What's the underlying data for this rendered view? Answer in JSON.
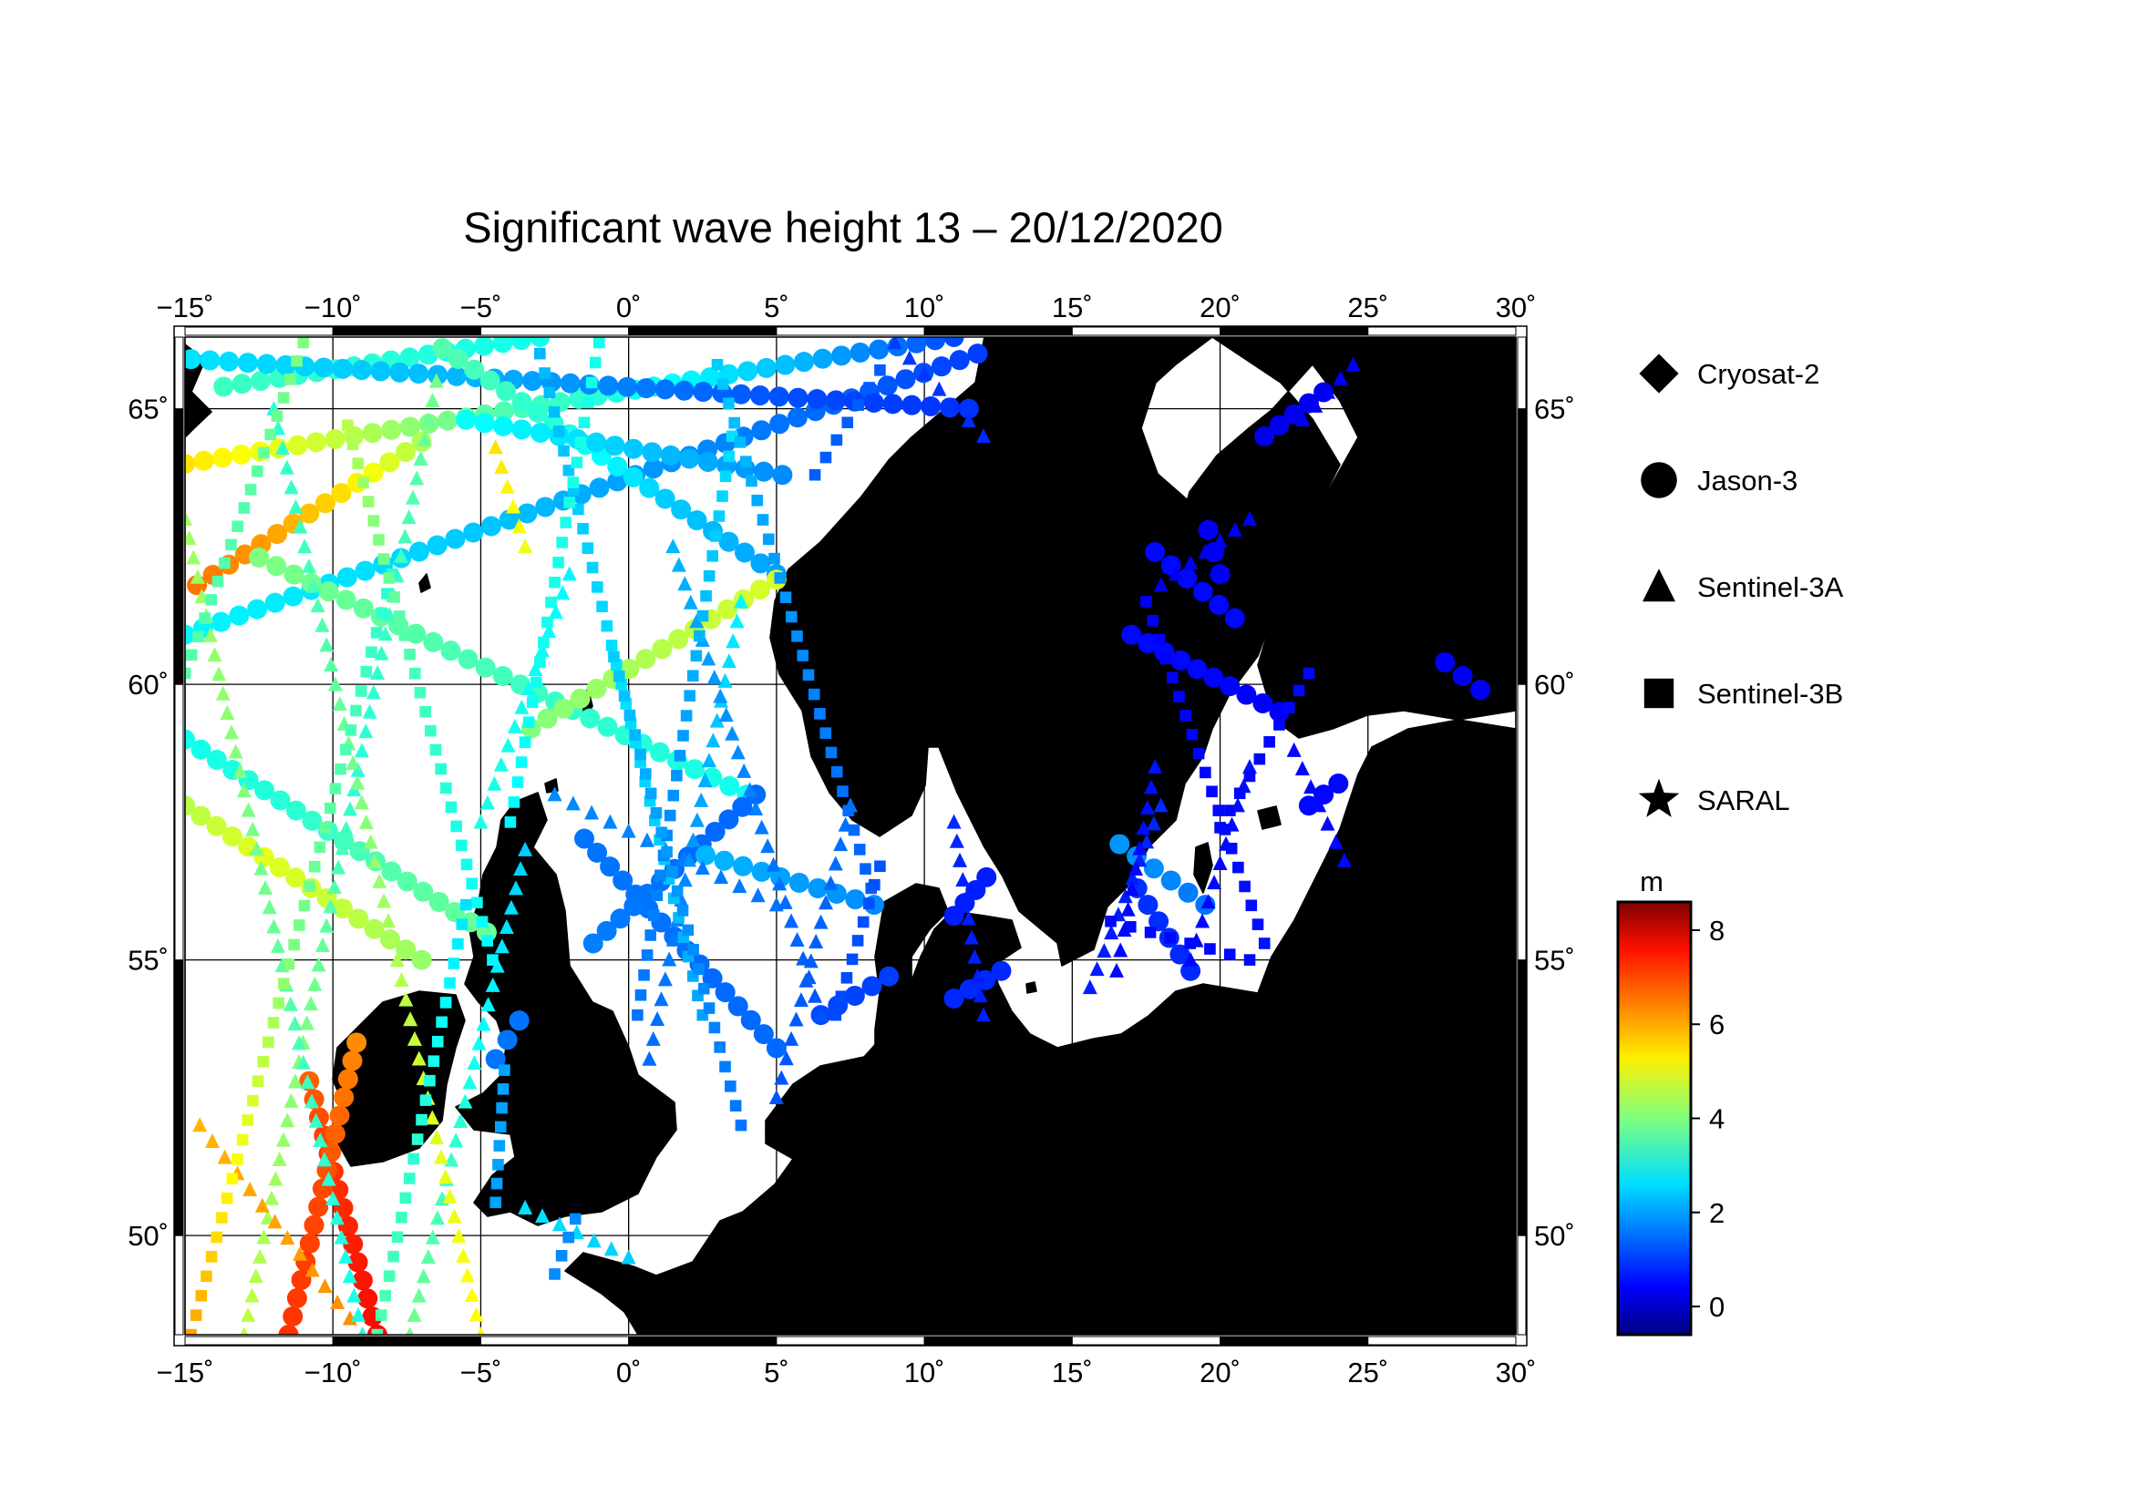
{
  "title": "Significant wave height 13 – 20/12/2020",
  "map": {
    "lon_range": [
      -15,
      30
    ],
    "lat_range": [
      48.2,
      66.3
    ],
    "lon_ticks": [
      -15,
      -10,
      -5,
      0,
      5,
      10,
      15,
      20,
      25,
      30
    ],
    "lat_ticks": [
      50,
      55,
      60,
      65
    ],
    "lon_tick_labels": [
      "−15˚",
      "−10˚",
      "−5˚",
      "0˚",
      "5˚",
      "10˚",
      "15˚",
      "20˚",
      "25˚",
      "30˚"
    ],
    "lat_tick_labels": [
      "50˚",
      "55˚",
      "60˚",
      "65˚"
    ],
    "land_color": "#bebebe",
    "sea_color": "#ffffff",
    "grid": true
  },
  "legend": {
    "items": [
      {
        "label": "Cryosat-2",
        "marker": "diamond"
      },
      {
        "label": "Jason-3",
        "marker": "circle"
      },
      {
        "label": "Sentinel-3A",
        "marker": "triangle"
      },
      {
        "label": "Sentinel-3B",
        "marker": "square"
      },
      {
        "label": "SARAL",
        "marker": "star"
      }
    ]
  },
  "colorbar": {
    "unit": "m",
    "min": -0.6,
    "max": 8.6,
    "ticks": [
      0,
      2,
      4,
      6,
      8
    ],
    "tick_labels": [
      "0",
      "2",
      "4",
      "6",
      "8"
    ]
  },
  "chart_data": {
    "type": "scatter",
    "title": "Significant wave height 13 – 20/12/2020",
    "x_label": "",
    "y_label": "",
    "value_unit": "m",
    "series": [
      {
        "name": "Jason-3",
        "marker": "circle",
        "tracks": [
          {
            "from": [
              -15,
              64.0
            ],
            "to": [
              11,
              66.3
            ],
            "hs": [
              5.4,
              4.6,
              3.6,
              3.0,
              2.2,
              1.2
            ]
          },
          {
            "from": [
              -14.6,
              61.8
            ],
            "to": [
              -7,
              64.4
            ],
            "hs": [
              6.4,
              6.0,
              5.4,
              4.4
            ]
          },
          {
            "from": [
              -15,
              60.9
            ],
            "to": [
              11.8,
              66.0
            ],
            "hs": [
              2.8,
              2.6,
              2.3,
              1.9,
              1.5,
              1.1
            ]
          },
          {
            "from": [
              -13.7,
              65.4
            ],
            "to": [
              -3,
              66.3
            ],
            "hs": [
              3.4,
              3.2,
              3.0
            ]
          },
          {
            "from": [
              -14.8,
              65.9
            ],
            "to": [
              11.5,
              65.0
            ],
            "hs": [
              2.6,
              2.4,
              2.1,
              1.6,
              1.2,
              1.0
            ]
          },
          {
            "from": [
              -6.3,
              66.1
            ],
            "to": [
              5.0,
              62.0
            ],
            "hs": [
              3.6,
              3.2,
              2.4,
              2.0
            ]
          },
          {
            "from": [
              -5.5,
              64.8
            ],
            "to": [
              5.2,
              63.8
            ],
            "hs": [
              2.9,
              2.6,
              2.2,
              1.8
            ]
          },
          {
            "from": [
              -15,
              59.0
            ],
            "to": [
              -4.8,
              55.5
            ],
            "hs": [
              3.0,
              3.2,
              3.6,
              3.8
            ]
          },
          {
            "from": [
              -15,
              57.8
            ],
            "to": [
              -7.0,
              55.0
            ],
            "hs": [
              4.5,
              4.9,
              4.6,
              4.2
            ]
          },
          {
            "from": [
              -12.5,
              62.3
            ],
            "to": [
              4.0,
              58.0
            ],
            "hs": [
              4.0,
              3.6,
              3.3,
              3.0
            ]
          },
          {
            "from": [
              -3.3,
              59.2
            ],
            "to": [
              5.0,
              61.9
            ],
            "hs": [
              4.0,
              4.3,
              4.6,
              4.8
            ]
          },
          {
            "from": [
              -1.5,
              57.2
            ],
            "to": [
              5.0,
              53.4
            ],
            "hs": [
              1.6,
              1.6,
              1.5,
              1.5
            ]
          },
          {
            "from": [
              -1.2,
              55.3
            ],
            "to": [
              4.3,
              58.0
            ],
            "hs": [
              1.7,
              1.6,
              1.5,
              1.5
            ]
          },
          {
            "from": [
              -10.8,
              52.8
            ],
            "to": [
              -8.5,
              48.2
            ],
            "hs": [
              6.6,
              7.0,
              7.2,
              7.4
            ]
          },
          {
            "from": [
              -11.5,
              48.2
            ],
            "to": [
              -9.2,
              53.5
            ],
            "hs": [
              7.0,
              6.8,
              6.2
            ]
          },
          {
            "from": [
              2.6,
              56.9
            ],
            "to": [
              8.3,
              56.0
            ],
            "hs": [
              2.2,
              2.0,
              1.8
            ]
          },
          {
            "from": [
              6.5,
              54.0
            ],
            "to": [
              8.8,
              54.7
            ],
            "hs": [
              1.2,
              1.1
            ]
          },
          {
            "from": [
              16.6,
              57.1
            ],
            "to": [
              19.5,
              56.0
            ],
            "hs": [
              1.9,
              1.8,
              1.6
            ]
          },
          {
            "from": [
              17.8,
              62.4
            ],
            "to": [
              20.5,
              61.2
            ],
            "hs": [
              0.6,
              0.6,
              0.6
            ]
          },
          {
            "from": [
              19.6,
              62.8
            ],
            "to": [
              20.0,
              62.0
            ],
            "hs": [
              0.5,
              0.5
            ]
          },
          {
            "from": [
              17.0,
              60.9
            ],
            "to": [
              22.0,
              59.5
            ],
            "hs": [
              0.6,
              0.6,
              0.5
            ]
          },
          {
            "from": [
              21.5,
              64.5
            ],
            "to": [
              23.5,
              65.3
            ],
            "hs": [
              0.4,
              0.4
            ]
          },
          {
            "from": [
              11.0,
              55.8
            ],
            "to": [
              12.1,
              56.5
            ],
            "hs": [
              0.8,
              0.8
            ]
          },
          {
            "from": [
              17.2,
              56.3
            ],
            "to": [
              19.0,
              54.8
            ],
            "hs": [
              1.0,
              0.9
            ]
          },
          {
            "from": [
              23.0,
              57.8
            ],
            "to": [
              24.0,
              58.2
            ],
            "hs": [
              0.6,
              0.6
            ]
          },
          {
            "from": [
              27.6,
              60.4
            ],
            "to": [
              28.8,
              59.9
            ],
            "hs": [
              0.5,
              0.5
            ]
          },
          {
            "from": [
              -4.5,
              53.2
            ],
            "to": [
              -3.7,
              53.9
            ],
            "hs": [
              1.6,
              1.6
            ]
          },
          {
            "from": [
              11.0,
              54.3
            ],
            "to": [
              12.6,
              54.8
            ],
            "hs": [
              0.9,
              0.9
            ]
          }
        ]
      },
      {
        "name": "Sentinel-3A",
        "marker": "triangle",
        "tracks": [
          {
            "from": [
              -13.0,
              48.2
            ],
            "to": [
              -6.5,
              65.5
            ],
            "hs": [
              4.6,
              4.2,
              3.8,
              3.2,
              3.4,
              3.9
            ]
          },
          {
            "from": [
              -14.5,
              52.0
            ],
            "to": [
              -9.0,
              48.2
            ],
            "hs": [
              5.8,
              6.0,
              6.2
            ]
          },
          {
            "from": [
              -9.0,
              48.2
            ],
            "to": [
              -15.0,
              63.0
            ],
            "hs": [
              3.0,
              3.3,
              3.8,
              4.1,
              4.3
            ]
          },
          {
            "from": [
              -7.4,
              48.2
            ],
            "to": [
              -3.5,
              57.0
            ],
            "hs": [
              3.9,
              3.4,
              2.8,
              2.4
            ]
          },
          {
            "from": [
              -5.0,
              48.2
            ],
            "to": [
              -12.0,
              65.0
            ],
            "hs": [
              5.2,
              4.8,
              4.2,
              3.6,
              3.2
            ]
          },
          {
            "from": [
              -5.0,
              57.5
            ],
            "to": [
              -2.0,
              62.0
            ],
            "hs": [
              3.1,
              3.0,
              2.8
            ]
          },
          {
            "from": [
              -2.5,
              58.0
            ],
            "to": [
              5.0,
              56.0
            ],
            "hs": [
              1.8,
              1.7,
              1.6
            ]
          },
          {
            "from": [
              0.7,
              53.2
            ],
            "to": [
              3.8,
              61.5
            ],
            "hs": [
              1.5,
              1.7,
              2.2,
              2.8
            ]
          },
          {
            "from": [
              1.5,
              62.5
            ],
            "to": [
              6.5,
              54.0
            ],
            "hs": [
              2.2,
              1.9,
              1.6,
              1.3
            ]
          },
          {
            "from": [
              5.0,
              52.5
            ],
            "to": [
              7.5,
              57.8
            ],
            "hs": [
              1.3,
              1.4,
              1.6
            ]
          },
          {
            "from": [
              -3.5,
              62.5
            ],
            "to": [
              -4.5,
              64.3
            ],
            "hs": [
              5.0,
              5.4
            ]
          },
          {
            "from": [
              11.0,
              57.5
            ],
            "to": [
              12.0,
              54.0
            ],
            "hs": [
              0.9,
              0.8,
              0.8
            ]
          },
          {
            "from": [
              15.6,
              54.5
            ],
            "to": [
              18.0,
              57.8
            ],
            "hs": [
              0.8,
              0.8,
              0.9
            ]
          },
          {
            "from": [
              16.5,
              54.8
            ],
            "to": [
              17.8,
              58.5
            ],
            "hs": [
              0.6,
              0.6,
              0.7
            ]
          },
          {
            "from": [
              19.0,
              55.0
            ],
            "to": [
              21.0,
              58.5
            ],
            "hs": [
              0.6,
              0.6,
              0.7
            ]
          },
          {
            "from": [
              18.0,
              61.8
            ],
            "to": [
              21.0,
              63.0
            ],
            "hs": [
              0.4,
              0.5
            ]
          },
          {
            "from": [
              22.5,
              58.8
            ],
            "to": [
              24.2,
              56.8
            ],
            "hs": [
              0.6,
              0.6
            ]
          },
          {
            "from": [
              22.8,
              64.8
            ],
            "to": [
              24.5,
              65.8
            ],
            "hs": [
              0.5,
              0.5
            ]
          },
          {
            "from": [
              12.0,
              64.5
            ],
            "to": [
              9.0,
              66.2
            ],
            "hs": [
              0.9,
              1.1
            ]
          },
          {
            "from": [
              -3.5,
              50.5
            ],
            "to": [
              0.0,
              49.6
            ],
            "hs": [
              2.6,
              2.4
            ]
          }
        ]
      },
      {
        "name": "Sentinel-3B",
        "marker": "square",
        "tracks": [
          {
            "from": [
              -14.8,
              48.2
            ],
            "to": [
              -8.0,
              62.0
            ],
            "hs": [
              6.0,
              5.0,
              4.0,
              3.6,
              3.2
            ]
          },
          {
            "from": [
              -15.0,
              60.2
            ],
            "to": [
              -11.0,
              66.2
            ],
            "hs": [
              3.6,
              3.6,
              4.0
            ]
          },
          {
            "from": [
              -9.5,
              64.7
            ],
            "to": [
              -4.6,
              55.0
            ],
            "hs": [
              4.5,
              3.7,
              3.2,
              2.8
            ]
          },
          {
            "from": [
              -8.5,
              48.2
            ],
            "to": [
              -5.5,
              56.0
            ],
            "hs": [
              3.6,
              3.2,
              2.6
            ]
          },
          {
            "from": [
              -3.0,
              66.0
            ],
            "to": [
              2.5,
              54.0
            ],
            "hs": [
              2.2,
              2.4,
              2.6,
              2.4,
              2.0
            ]
          },
          {
            "from": [
              -4.0,
              57.5
            ],
            "to": [
              -1.0,
              66.2
            ],
            "hs": [
              2.8,
              3.0,
              3.1,
              3.0
            ]
          },
          {
            "from": [
              0.3,
              54.0
            ],
            "to": [
              3.5,
              64.5
            ],
            "hs": [
              1.6,
              1.8,
              2.2,
              2.6
            ]
          },
          {
            "from": [
              -0.5,
              60.5
            ],
            "to": [
              3.8,
              52.0
            ],
            "hs": [
              2.4,
              2.0,
              1.8,
              1.6
            ]
          },
          {
            "from": [
              3.0,
              65.8
            ],
            "to": [
              8.2,
              56.3
            ],
            "hs": [
              2.4,
              2.0,
              1.7,
              1.4
            ]
          },
          {
            "from": [
              8.5,
              56.7
            ],
            "to": [
              7.0,
              54.0
            ],
            "hs": [
              1.3,
              1.2
            ]
          },
          {
            "from": [
              6.3,
              63.8
            ],
            "to": [
              8.5,
              65.7
            ],
            "hs": [
              1.4,
              1.4
            ]
          },
          {
            "from": [
              16.3,
              55.7
            ],
            "to": [
              21.0,
              55.0
            ],
            "hs": [
              0.6,
              0.6,
              0.6
            ]
          },
          {
            "from": [
              17.5,
              61.5
            ],
            "to": [
              21.5,
              55.3
            ],
            "hs": [
              0.5,
              0.6,
              0.7
            ]
          },
          {
            "from": [
              20.0,
              57.4
            ],
            "to": [
              23.0,
              60.2
            ],
            "hs": [
              0.6,
              0.6
            ]
          },
          {
            "from": [
              -2.5,
              49.3
            ],
            "to": [
              -1.8,
              50.3
            ],
            "hs": [
              1.8,
              1.8
            ]
          },
          {
            "from": [
              -4.5,
              50.6
            ],
            "to": [
              -4.2,
              53.0
            ],
            "hs": [
              2.0,
              2.0
            ]
          }
        ]
      },
      {
        "name": "Cryosat-2",
        "marker": "diamond",
        "tracks": []
      },
      {
        "name": "SARAL",
        "marker": "star",
        "tracks": []
      }
    ]
  }
}
